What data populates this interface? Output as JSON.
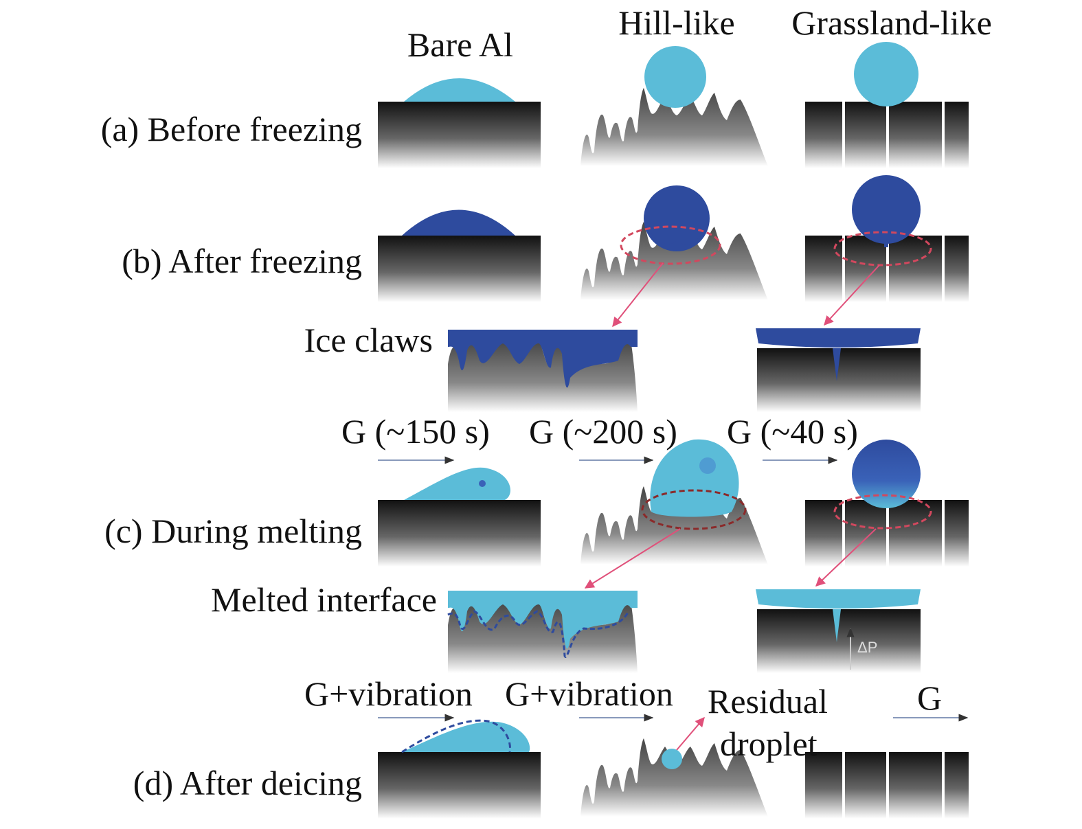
{
  "column_headers": [
    "Bare Al",
    "Hill-like",
    "Grassland-like"
  ],
  "rows": [
    "(a) Before freezing",
    "(b) After freezing",
    "(c) During melting",
    "(d) After deicing"
  ],
  "annotations": {
    "ice_claws": "Ice claws",
    "melted_interface": "Melted interface",
    "melting_times": [
      "G (~150 s)",
      "G (~200 s)",
      "G (~40 s)"
    ],
    "deicing_forces": [
      "G+vibration",
      "G+vibration",
      "G"
    ],
    "residual_droplet": [
      "Residual",
      "droplet"
    ],
    "pressure": "ΔP"
  }
}
